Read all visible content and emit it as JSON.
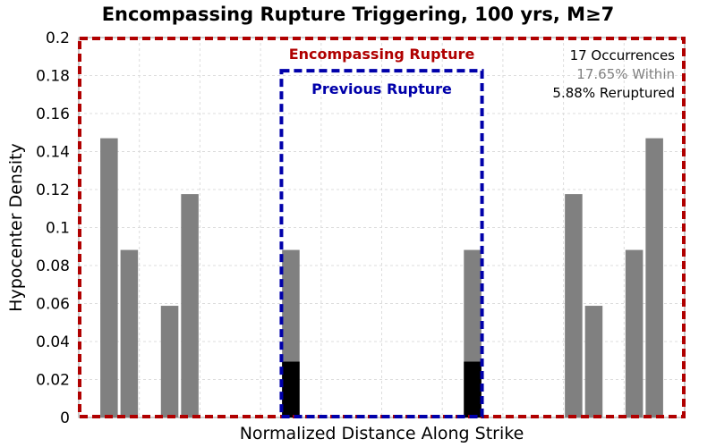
{
  "chart_data": {
    "type": "bar",
    "title": "Encompassing Rupture Triggering, 100 yrs, M≥7",
    "xlabel": "Normalized Distance Along Strike",
    "ylabel": "Hypocenter Density",
    "xlim": [
      0,
      1
    ],
    "ylim": [
      0,
      0.2
    ],
    "yticks": [
      "0",
      "0.02",
      "0.04",
      "0.06",
      "0.08",
      "0.1",
      "0.12",
      "0.14",
      "0.16",
      "0.18",
      "0.2"
    ],
    "grid": true,
    "bin_width": 0.0333,
    "series": [
      {
        "name": "Hypocenter Density",
        "color": "#808080",
        "bins": [
          {
            "x": 0.05,
            "value": 0.147
          },
          {
            "x": 0.0833,
            "value": 0.0882
          },
          {
            "x": 0.15,
            "value": 0.0588
          },
          {
            "x": 0.1833,
            "value": 0.1176
          },
          {
            "x": 0.35,
            "value": 0.0882
          },
          {
            "x": 0.65,
            "value": 0.0882
          },
          {
            "x": 0.8167,
            "value": 0.1176
          },
          {
            "x": 0.85,
            "value": 0.0588
          },
          {
            "x": 0.9167,
            "value": 0.0882
          },
          {
            "x": 0.95,
            "value": 0.147
          }
        ]
      },
      {
        "name": "Reruptured",
        "color": "#000000",
        "bins": [
          {
            "x": 0.35,
            "value": 0.0294
          },
          {
            "x": 0.65,
            "value": 0.0294
          }
        ]
      }
    ],
    "regions": [
      {
        "label": "Encompassing Rupture",
        "color": "#b00000",
        "x0": 0.0,
        "x1": 1.0,
        "ytop": 0.2
      },
      {
        "label": "Previous Rupture",
        "color": "#0000aa",
        "x0": 0.333,
        "x1": 0.667,
        "ytop": 0.183
      }
    ],
    "annotations": [
      {
        "text": "17 Occurrences",
        "color": "#000000"
      },
      {
        "text": "17.65% Within",
        "color": "#808080"
      },
      {
        "text": "5.88% Reruptured",
        "color": "#000000"
      }
    ]
  }
}
